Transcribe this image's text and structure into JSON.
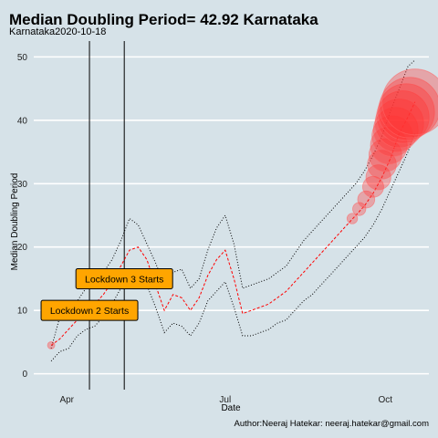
{
  "chart_data": {
    "type": "line",
    "title": "Median Doubling Period=  42.92 Karnataka",
    "subtitle": "Karnataka2020-10-18",
    "xlabel": "Date",
    "ylabel": "Median Doubling Period",
    "caption": "Author:Neeraj Hatekar: neeraj.hatekar@gmail.com",
    "xlim": [
      "2020-03-13",
      "2020-10-26"
    ],
    "ylim": [
      -2.5,
      52.5
    ],
    "x_ticks": [
      {
        "date": "2020-04-01",
        "label": "Apr"
      },
      {
        "date": "2020-07-01",
        "label": "Jul"
      },
      {
        "date": "2020-10-01",
        "label": "Oct"
      }
    ],
    "y_ticks": [
      0,
      10,
      20,
      30,
      40,
      50
    ],
    "grid": "horizontal",
    "colors": {
      "background": "#d6e2e8",
      "line": "#ff0000",
      "bubble": "#ff3333",
      "annotation_fill": "#ffa500"
    },
    "vlines": [
      {
        "date": "2020-04-14"
      },
      {
        "date": "2020-05-04"
      }
    ],
    "annotations": [
      {
        "text": "Lockdown 2 Starts",
        "date": "2020-04-14",
        "y": 10
      },
      {
        "text": "Lockdown 3 Starts",
        "date": "2020-05-04",
        "y": 15
      }
    ],
    "series": [
      {
        "x": [
          "2020-03-23",
          "2020-03-28",
          "2020-04-02",
          "2020-04-07",
          "2020-04-12",
          "2020-04-17",
          "2020-04-22",
          "2020-04-27",
          "2020-05-02",
          "2020-05-07",
          "2020-05-12",
          "2020-05-17",
          "2020-05-22",
          "2020-05-27",
          "2020-06-01",
          "2020-06-06",
          "2020-06-11",
          "2020-06-16",
          "2020-06-21",
          "2020-06-26",
          "2020-07-01",
          "2020-07-06",
          "2020-07-11",
          "2020-07-16",
          "2020-07-21",
          "2020-07-26",
          "2020-07-31",
          "2020-08-05",
          "2020-08-10",
          "2020-08-15",
          "2020-08-20",
          "2020-08-25",
          "2020-08-30",
          "2020-09-04",
          "2020-09-09",
          "2020-09-14",
          "2020-09-19",
          "2020-09-24",
          "2020-09-29",
          "2020-10-04",
          "2020-10-09",
          "2020-10-14",
          "2020-10-18"
        ],
        "median": [
          4.5,
          5.5,
          7.0,
          8.5,
          10.0,
          11.0,
          12.5,
          14.5,
          17.0,
          19.5,
          20.0,
          18.0,
          14.0,
          10.0,
          12.5,
          12.0,
          10.0,
          12.0,
          15.5,
          18.0,
          19.5,
          15.0,
          9.5,
          10.0,
          10.5,
          11.0,
          12.0,
          13.0,
          14.5,
          16.0,
          17.5,
          19.0,
          20.5,
          22.0,
          23.5,
          25.0,
          26.5,
          28.5,
          31.0,
          34.0,
          38.0,
          40.5,
          42.9
        ],
        "upper": [
          4.0,
          9.0,
          10.0,
          11.5,
          13.5,
          15.0,
          16.0,
          18.0,
          21.0,
          24.5,
          23.5,
          20.5,
          17.5,
          14.0,
          16.0,
          16.5,
          13.5,
          15.0,
          19.5,
          23.0,
          25.0,
          20.5,
          13.5,
          14.0,
          14.5,
          15.0,
          16.0,
          17.0,
          19.0,
          21.0,
          22.5,
          24.0,
          25.5,
          27.0,
          28.5,
          30.0,
          32.0,
          34.5,
          37.5,
          41.5,
          45.0,
          48.5,
          49.5
        ],
        "lower": [
          2.0,
          3.5,
          4.0,
          6.0,
          7.0,
          7.5,
          9.0,
          11.0,
          13.5,
          15.5,
          16.0,
          14.0,
          10.5,
          6.5,
          8.0,
          7.5,
          6.0,
          8.0,
          11.5,
          13.0,
          14.5,
          10.5,
          6.0,
          6.0,
          6.5,
          7.0,
          8.0,
          8.5,
          10.0,
          11.5,
          12.5,
          14.0,
          15.5,
          17.0,
          18.5,
          20.0,
          21.5,
          23.5,
          26.0,
          29.0,
          32.0,
          35.0,
          38.0
        ],
        "bubbles": [
          {
            "date": "2020-03-23",
            "y": 4.5,
            "size": 0.06
          },
          {
            "date": "2020-09-12",
            "y": 24.5,
            "size": 0.16
          },
          {
            "date": "2020-09-16",
            "y": 26.0,
            "size": 0.2
          },
          {
            "date": "2020-09-20",
            "y": 27.5,
            "size": 0.26
          },
          {
            "date": "2020-09-24",
            "y": 29.5,
            "size": 0.32
          },
          {
            "date": "2020-09-27",
            "y": 31.0,
            "size": 0.38
          },
          {
            "date": "2020-09-29",
            "y": 33.0,
            "size": 0.44
          },
          {
            "date": "2020-10-01",
            "y": 34.5,
            "size": 0.5
          },
          {
            "date": "2020-10-03",
            "y": 36.0,
            "size": 0.56
          },
          {
            "date": "2020-10-05",
            "y": 37.5,
            "size": 0.62
          },
          {
            "date": "2020-10-07",
            "y": 38.5,
            "size": 0.68
          },
          {
            "date": "2020-10-09",
            "y": 39.5,
            "size": 0.74
          },
          {
            "date": "2020-10-11",
            "y": 40.5,
            "size": 0.8
          },
          {
            "date": "2020-10-13",
            "y": 41.3,
            "size": 0.86
          },
          {
            "date": "2020-10-15",
            "y": 42.0,
            "size": 0.92
          },
          {
            "date": "2020-10-18",
            "y": 42.9,
            "size": 1.0
          }
        ]
      }
    ]
  }
}
